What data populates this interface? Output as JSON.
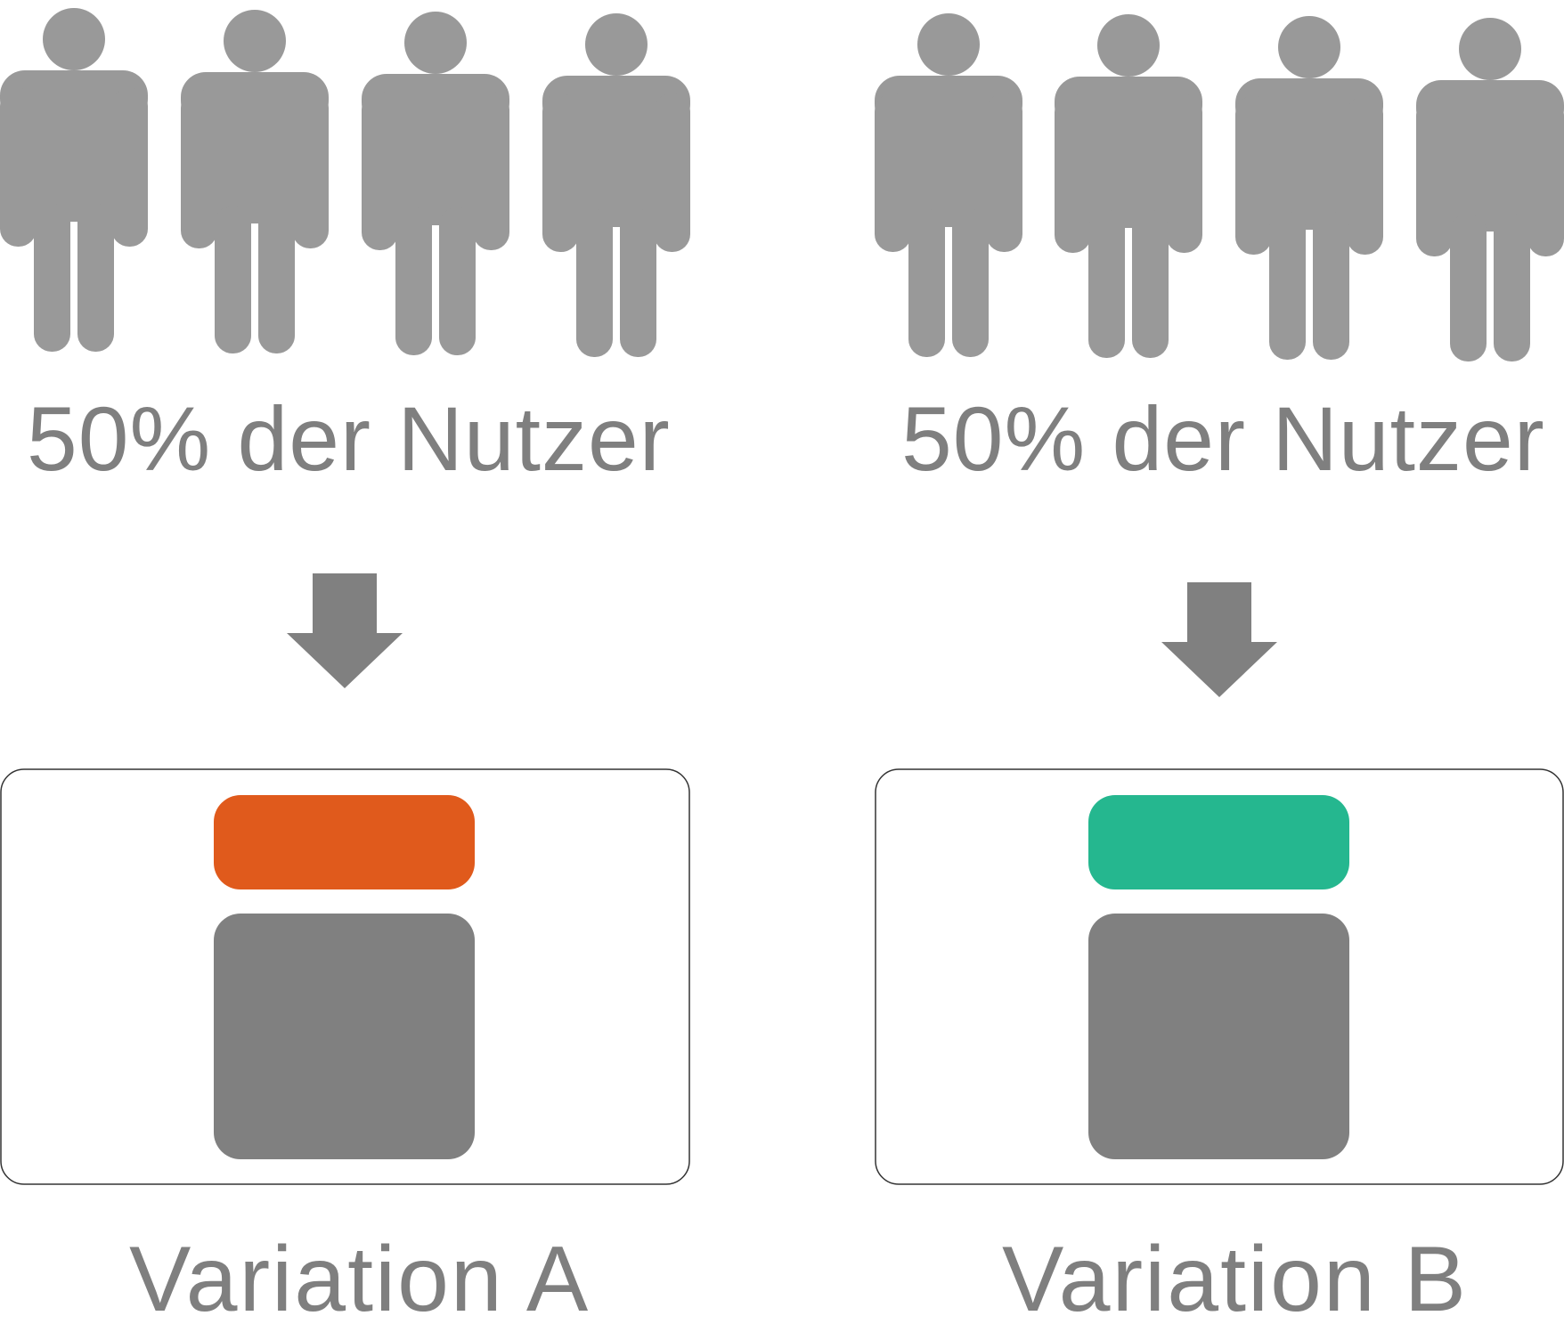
{
  "colors": {
    "person": "#999999",
    "arrow": "#808080",
    "text": "#7f7f7f",
    "mockup_border": "#333333",
    "content_block": "#808080",
    "banner_a": "#e05a1c",
    "banner_b": "#25b78f",
    "background": "#ffffff"
  },
  "groups": [
    {
      "users_label": "50% der Nutzer",
      "people_count": 4,
      "icons": [
        "person-icon",
        "person-icon",
        "person-icon",
        "person-icon",
        "arrow-down-icon"
      ],
      "variation_label": "Variation A",
      "banner_color": "#e05a1c"
    },
    {
      "users_label": "50% der Nutzer",
      "people_count": 4,
      "icons": [
        "person-icon",
        "person-icon",
        "person-icon",
        "person-icon",
        "arrow-down-icon"
      ],
      "variation_label": "Variation B",
      "banner_color": "#25b78f"
    }
  ]
}
